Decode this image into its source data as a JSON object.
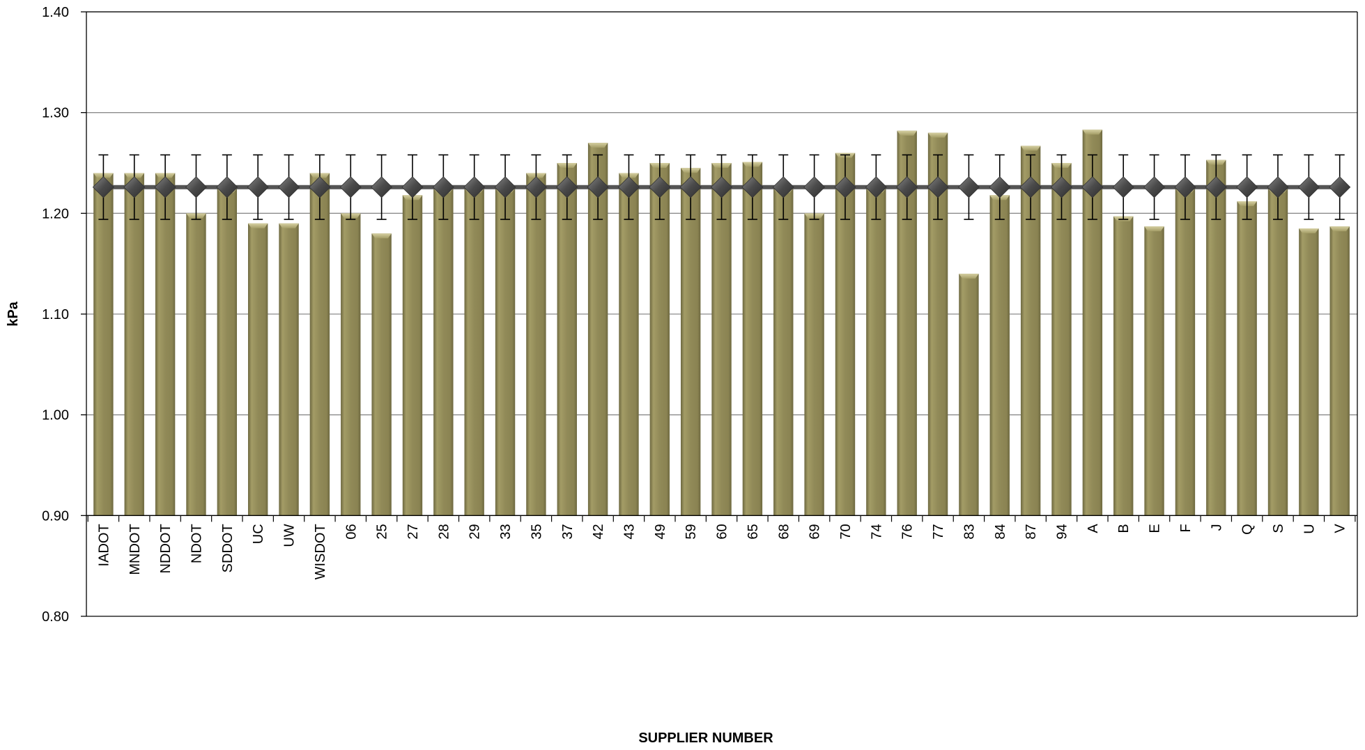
{
  "chart_data": {
    "type": "bar",
    "title": "",
    "xlabel": "SUPPLIER NUMBER",
    "ylabel": "kPa",
    "ylim": [
      0.8,
      1.4
    ],
    "yticks": [
      "0.80",
      "0.90",
      "1.00",
      "1.10",
      "1.20",
      "1.30",
      "1.40"
    ],
    "ytick_values": [
      0.8,
      0.9,
      1.0,
      1.1,
      1.2,
      1.3,
      1.4
    ],
    "bar_base": 0.9,
    "grid": true,
    "categories": [
      "IADOT",
      "MNDOT",
      "NDDOT",
      "NDOT",
      "SDDOT",
      "UC",
      "UW",
      "WISDOT",
      "06",
      "25",
      "27",
      "28",
      "29",
      "33",
      "35",
      "37",
      "42",
      "43",
      "49",
      "59",
      "60",
      "65",
      "68",
      "69",
      "70",
      "74",
      "76",
      "77",
      "83",
      "84",
      "87",
      "94",
      "A",
      "B",
      "E",
      "F",
      "J",
      "Q",
      "S",
      "U",
      "V"
    ],
    "series": [
      {
        "values": [
          1.24,
          1.24,
          1.24,
          1.2,
          1.225,
          1.19,
          1.19,
          1.24,
          1.2,
          1.18,
          1.218,
          1.225,
          1.225,
          1.225,
          1.24,
          1.25,
          1.27,
          1.24,
          1.25,
          1.245,
          1.25,
          1.251,
          1.225,
          1.2,
          1.26,
          1.225,
          1.282,
          1.28,
          1.14,
          1.218,
          1.267,
          1.25,
          1.283,
          1.197,
          1.187,
          1.225,
          1.253,
          1.212,
          1.225,
          1.185,
          1.187
        ]
      }
    ],
    "mean_line": {
      "value": 1.226,
      "error": 0.032
    },
    "colors": {
      "bar": "#918a58",
      "bar_light": "#c4bd8a",
      "bar_dark": "#6d6840",
      "marker": "#444444",
      "line": "#555555",
      "grid": "#8c8c8c"
    }
  }
}
